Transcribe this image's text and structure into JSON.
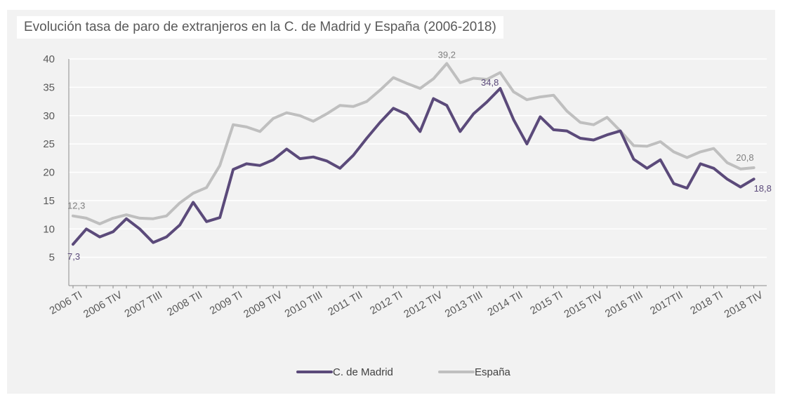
{
  "chart_data": {
    "type": "line",
    "title": "Evolución tasa de paro de extranjeros en la C. de Madrid y España (2006-2018)",
    "xlabel": "",
    "ylabel": "",
    "ylim": [
      0,
      40
    ],
    "yticks": [
      5,
      10,
      15,
      20,
      25,
      30,
      35,
      40
    ],
    "grid": true,
    "legend": "bottom",
    "x_tick_labels": [
      {
        "index": 0,
        "label": "2006 TI"
      },
      {
        "index": 3,
        "label": "2006 TIV"
      },
      {
        "index": 6,
        "label": "2007 TIII"
      },
      {
        "index": 9,
        "label": "2008 TII"
      },
      {
        "index": 12,
        "label": "2009 TI"
      },
      {
        "index": 15,
        "label": "2009 TIV"
      },
      {
        "index": 18,
        "label": "2010 TIII"
      },
      {
        "index": 21,
        "label": "2011 TII"
      },
      {
        "index": 24,
        "label": "2012 TI"
      },
      {
        "index": 27,
        "label": "2012 TIV"
      },
      {
        "index": 30,
        "label": "2013 TIII"
      },
      {
        "index": 33,
        "label": "2014 TII"
      },
      {
        "index": 36,
        "label": "2015 TI"
      },
      {
        "index": 39,
        "label": "2015 TIV"
      },
      {
        "index": 42,
        "label": "2016 TIII"
      },
      {
        "index": 45,
        "label": "2017TII"
      },
      {
        "index": 48,
        "label": "2018 TI"
      },
      {
        "index": 51,
        "label": "2018 TIV"
      }
    ],
    "series": [
      {
        "name": "C. de Madrid",
        "color": "#5b4a7a",
        "values": [
          7.3,
          10.0,
          8.6,
          9.5,
          11.8,
          10.0,
          7.6,
          8.6,
          10.7,
          14.7,
          11.3,
          12.0,
          20.5,
          21.5,
          21.2,
          22.2,
          24.1,
          22.4,
          22.7,
          22.0,
          20.7,
          23.0,
          26.0,
          28.8,
          31.3,
          30.2,
          27.2,
          33.0,
          31.8,
          27.2,
          30.3,
          32.4,
          34.8,
          29.3,
          25.0,
          29.8,
          27.5,
          27.3,
          26.0,
          25.7,
          26.6,
          27.3,
          22.3,
          20.7,
          22.2,
          18.0,
          17.2,
          21.5,
          20.7,
          18.8,
          17.4,
          18.8
        ],
        "labels": [
          {
            "index": 0,
            "text": "7,3"
          },
          {
            "index": 32,
            "text": "34,8"
          },
          {
            "index": 51,
            "text": "18,8"
          }
        ]
      },
      {
        "name": "España",
        "color": "#bfbfbf",
        "values": [
          12.3,
          11.9,
          10.9,
          11.9,
          12.5,
          11.9,
          11.8,
          12.3,
          14.6,
          16.3,
          17.3,
          21.2,
          28.4,
          28.0,
          27.2,
          29.5,
          30.5,
          30.0,
          29.0,
          30.3,
          31.8,
          31.6,
          32.5,
          34.5,
          36.7,
          35.7,
          34.8,
          36.5,
          39.2,
          35.8,
          36.6,
          36.4,
          37.6,
          34.2,
          32.8,
          33.3,
          33.6,
          30.8,
          28.8,
          28.4,
          29.7,
          27.3,
          24.7,
          24.6,
          25.4,
          23.6,
          22.6,
          23.6,
          24.2,
          21.7,
          20.6,
          20.8
        ],
        "labels": [
          {
            "index": 0,
            "text": "12,3"
          },
          {
            "index": 28,
            "text": "39,2"
          },
          {
            "index": 51,
            "text": "20,8"
          }
        ]
      }
    ]
  }
}
